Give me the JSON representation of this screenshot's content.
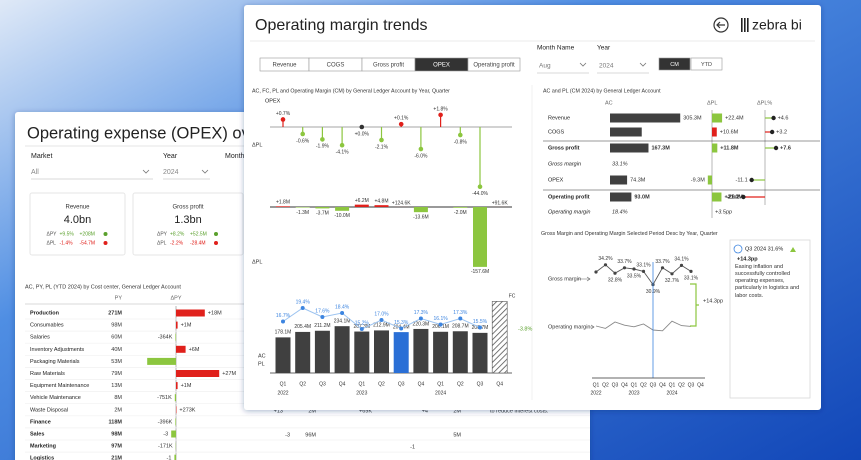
{
  "back_panel": {
    "title": "Operating expense (OPEX) overview",
    "filters": [
      {
        "label": "Market",
        "value": "All"
      },
      {
        "label": "Year",
        "value": "2024"
      },
      {
        "label": "Month"
      }
    ],
    "cards": [
      {
        "title": "Revenue",
        "value": "4.0bn",
        "lines": [
          {
            "label": "ΔPY",
            "pct": "+9.5%",
            "abs": "+208M"
          },
          {
            "label": "ΔPL",
            "pct": "-1.4%",
            "abs": "-54.7M"
          }
        ]
      },
      {
        "title": "Gross profit",
        "value": "1.3bn",
        "lines": [
          {
            "label": "ΔPY",
            "pct": "+8.2%",
            "abs": "+52.5M"
          },
          {
            "label": "ΔPL",
            "pct": "-2.2%",
            "abs": "-28.4M"
          }
        ]
      }
    ],
    "table": {
      "title": "AC, PY, PL (YTD 2024) by Cost center, General Ledger Account",
      "columns": [
        "PY",
        "ΔPY"
      ],
      "rows": [
        {
          "name": "Production",
          "py": "271M",
          "delta": 18,
          "delta_label": "+18M",
          "bold": true
        },
        {
          "name": "Consumables",
          "py": "98M",
          "delta": 1,
          "delta_label": "+1M"
        },
        {
          "name": "Salaries",
          "py": "60M",
          "delta": -0.364,
          "delta_label": "-364K"
        },
        {
          "name": "Inventory Adjustments",
          "py": "40M",
          "delta": 6,
          "delta_label": "+6M"
        },
        {
          "name": "Packaging Materials",
          "py": "53M",
          "delta": -18
        },
        {
          "name": "Raw Materials",
          "py": "79M",
          "delta": 27,
          "delta_label": "+27M"
        },
        {
          "name": "Equipment Maintenance",
          "py": "13M",
          "delta": 1,
          "delta_label": "+1M"
        },
        {
          "name": "Vehicle Maintenance",
          "py": "8M",
          "delta": -0.751,
          "delta_label": "-751K"
        },
        {
          "name": "Waste Disposal",
          "py": "2M",
          "delta": 0.273,
          "delta_label": "+273K"
        },
        {
          "name": "Finance",
          "py": "118M",
          "delta": -0.396,
          "delta_label": "-396K",
          "bold": true
        },
        {
          "name": "Sales",
          "py": "98M",
          "delta": -3,
          "delta_label": "-3",
          "bold": true
        },
        {
          "name": "Marketing",
          "py": "97M",
          "delta": -0.171,
          "delta_label": "-171K",
          "bold": true
        },
        {
          "name": "Logistics",
          "py": "21M",
          "delta": -1,
          "delta_label": "-1",
          "bold": true
        }
      ]
    },
    "fragments": [
      "+13",
      "2M",
      "+69K",
      "+4",
      "2M",
      "96M",
      "-3",
      "5M",
      "-1"
    ],
    "note": "to reduce interest costs."
  },
  "front_panel": {
    "title": "Operating margin trends",
    "logo": "zebra bi",
    "tabs": [
      "Revenue",
      "COGS",
      "Gross profit",
      "OPEX",
      "Operating profit"
    ],
    "active_tab": 3,
    "filters": [
      {
        "label": "Month Name",
        "value": "Aug"
      },
      {
        "label": "Year",
        "value": "2024"
      }
    ],
    "toggle": [
      "CM",
      "YTD"
    ],
    "active_toggle": 0,
    "trend_chart": {
      "title": "AC, FC, PL and Operating Margin (CM) by General Ledger Account by Year, Quarter",
      "subtitle": "OPEX",
      "axis_labels": [
        "ΔPL",
        "ΔPL"
      ],
      "series_labels": [
        "AC",
        "PL"
      ],
      "quarters": [
        "Q1",
        "Q2",
        "Q3",
        "Q4",
        "Q1",
        "Q2",
        "Q3",
        "Q4",
        "Q1",
        "Q2",
        "Q3",
        "Q4"
      ],
      "years": [
        "2022",
        "2023",
        "2024"
      ],
      "delta_pct": {
        "values": [
          0.7,
          -0.6,
          -1.9,
          -4.1,
          0.0,
          -2.1,
          0.1,
          -6.0,
          1.8,
          -0.8,
          -44.0,
          null
        ],
        "value_labels": [
          "+0.7%",
          "-0.6%",
          "-1.9%",
          "-4.1%",
          "+0.0%",
          "-2.1%",
          "+0.1%",
          "-6.0%",
          "+1.8%",
          "-0.8%",
          "-44.0%",
          null
        ]
      },
      "delta": {
        "values": [
          1.8,
          -1.3,
          -3.7,
          -10.0,
          6.2,
          4.8,
          0.1246,
          -13.6,
          null,
          -2.0,
          -157.6,
          0.0916
        ],
        "value_labels": [
          "+1.8M",
          "-1.3M",
          "-3.7M",
          "-10.0M",
          "+6.2M",
          "+4.8M",
          "+124.6K",
          "-13.6M",
          null,
          "-2.0M",
          "-157.6M",
          "+91.6K"
        ]
      },
      "ac": {
        "values": [
          178.1,
          205.4,
          211.2,
          234.1,
          207.3,
          212.9,
          204.4,
          220.3,
          206.1,
          208.7,
          200.7,
          358
        ],
        "value_labels": [
          "178.1M",
          "205.4M",
          "211.2M",
          "234.1M",
          "207.3M",
          "212.9M",
          "204.4M",
          "220.3M",
          "206.1M",
          "208.7M",
          "200.7M",
          null
        ]
      },
      "margin": {
        "values": [
          16.7,
          19.4,
          17.6,
          18.4,
          15.2,
          17.0,
          15.3,
          17.3,
          16.1,
          17.3,
          15.5,
          null
        ],
        "value_labels": [
          "16.7%",
          "19.4%",
          "17.6%",
          "18.4%",
          "15.2%",
          "17.0%",
          "15.3%",
          "17.3%",
          "16.1%",
          "17.3%",
          "15.5%",
          null
        ]
      },
      "highlight": 6,
      "forecast": 11,
      "fc_label": "FC",
      "end_label": "-3.8%"
    },
    "variance_table": {
      "title": "AC and PL (CM 2024) by General Ledger Account",
      "columns": [
        "AC",
        "ΔPL",
        "ΔPL%"
      ],
      "rows": [
        {
          "name": "Revenue",
          "ac": 305.3,
          "ac_label": "305.3M",
          "dpl": 22.4,
          "dpl_label": "+22.4M",
          "dpct": 4.6,
          "dpct_label": "+4.6"
        },
        {
          "name": "COGS",
          "ac": 138.0,
          "dpl": 10.6,
          "dpl_label": "+10.6M",
          "dpct": 3.2,
          "dpct_label": "+3.2",
          "cost": true
        },
        {
          "name": "Gross profit",
          "ac": 167.3,
          "ac_label": "167.3M",
          "dpl": 11.8,
          "dpl_label": "+11.8M",
          "dpct": 7.6,
          "dpct_label": "+7.6",
          "bold": true
        },
        {
          "name": "Gross margin",
          "ac_label": "33.1%",
          "italic": true
        },
        {
          "name": "OPEX",
          "ac": 74.3,
          "ac_label": "74.3M",
          "dpl": -9.3,
          "dpl_label": "-9.3M",
          "dpct": -11.1,
          "dpct_label": "-11.1",
          "cost": true
        },
        {
          "name": "Operating profit",
          "ac": 93.0,
          "ac_label": "93.0M",
          "dpl": 21.0,
          "dpl_label": "+21.0M",
          "dpct": -29.2,
          "dpct_label": "-29.2",
          "bold": true
        },
        {
          "name": "Operating margin",
          "ac_label": "18.4%",
          "dpl_label": "+3.5pp",
          "italic": true
        }
      ]
    },
    "margin_chart": {
      "title": "Gross Margin and Operating Margin Selected Period Desc by Year, Quarter",
      "quarters": [
        "Q1",
        "Q2",
        "Q3",
        "Q4",
        "Q1",
        "Q2",
        "Q3",
        "Q4",
        "Q1",
        "Q2",
        "Q3",
        "Q4"
      ],
      "years": [
        "2022",
        "2023",
        "2024"
      ],
      "series": [
        {
          "name": "Gross margin",
          "values": [
            33.0,
            34.2,
            32.8,
            33.7,
            33.5,
            33.1,
            30.9,
            33.7,
            32.7,
            34.1,
            33.1,
            null
          ],
          "value_labels": [
            null,
            "34.2%",
            "32.8%",
            "33.7%",
            "33.5%",
            "33.1%",
            "30.9%",
            "33.7%",
            "32.7%",
            "34.1%",
            "33.1%",
            null
          ]
        },
        {
          "name": "Operating margin",
          "values": [
            17.0,
            16.4,
            18.0,
            17.2,
            16.8,
            17.5,
            16.0,
            15.8,
            18.2,
            17.1,
            16.9,
            null
          ]
        }
      ],
      "highlight": 6,
      "delta_label": "+14.3pp"
    },
    "comment": {
      "title": "Q3 2024 31.6%",
      "value": "+14.3pp",
      "text": "Easing inflation and successfully controlled operating expenses, particularly in logistics and labor costs."
    }
  }
}
